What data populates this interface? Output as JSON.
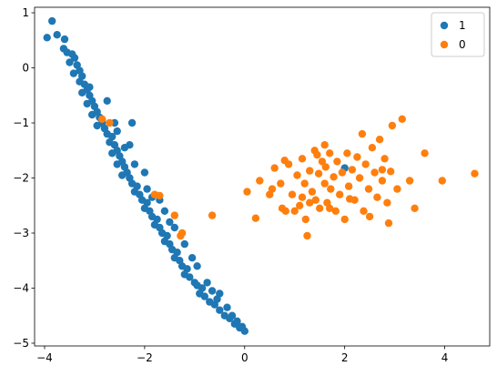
{
  "chart_data": {
    "type": "scatter",
    "title": "",
    "xlabel": "",
    "ylabel": "",
    "xlim": [
      -4.2,
      4.9
    ],
    "ylim": [
      -5.05,
      1.1
    ],
    "xticks": [
      -4,
      -2,
      0,
      2,
      4
    ],
    "yticks": [
      1,
      0,
      -1,
      -2,
      -3,
      -4,
      -5
    ],
    "xtick_labels": [
      "−4",
      "−2",
      "0",
      "2",
      "4"
    ],
    "ytick_labels": [
      "1",
      "0",
      "−1",
      "−2",
      "−3",
      "−4",
      "−5"
    ],
    "grid": false,
    "legend_position": "top-right",
    "series": [
      {
        "name": "1",
        "color": "#1f77b4",
        "points": [
          [
            -3.85,
            0.85
          ],
          [
            -3.95,
            0.55
          ],
          [
            -3.75,
            0.6
          ],
          [
            -3.6,
            0.52
          ],
          [
            -3.62,
            0.35
          ],
          [
            -3.55,
            0.28
          ],
          [
            -3.45,
            0.25
          ],
          [
            -3.4,
            0.18
          ],
          [
            -3.5,
            0.1
          ],
          [
            -3.35,
            0.05
          ],
          [
            -3.3,
            -0.05
          ],
          [
            -3.42,
            -0.1
          ],
          [
            -3.25,
            -0.15
          ],
          [
            -3.3,
            -0.25
          ],
          [
            -3.2,
            -0.3
          ],
          [
            -3.15,
            -0.4
          ],
          [
            -3.25,
            -0.45
          ],
          [
            -3.1,
            -0.5
          ],
          [
            -3.05,
            -0.6
          ],
          [
            -3.15,
            -0.65
          ],
          [
            -3.0,
            -0.7
          ],
          [
            -2.95,
            -0.8
          ],
          [
            -3.05,
            -0.85
          ],
          [
            -2.9,
            -0.9
          ],
          [
            -2.85,
            -1.0
          ],
          [
            -2.95,
            -1.05
          ],
          [
            -2.8,
            -1.1
          ],
          [
            -2.75,
            -1.2
          ],
          [
            -2.65,
            -1.25
          ],
          [
            -2.7,
            -1.35
          ],
          [
            -2.6,
            -1.4
          ],
          [
            -2.55,
            -1.5
          ],
          [
            -2.65,
            -1.55
          ],
          [
            -2.5,
            -1.6
          ],
          [
            -2.45,
            -1.7
          ],
          [
            -2.55,
            -1.75
          ],
          [
            -2.4,
            -1.8
          ],
          [
            -2.35,
            -1.9
          ],
          [
            -2.45,
            -1.95
          ],
          [
            -2.3,
            -2.0
          ],
          [
            -2.25,
            -2.1
          ],
          [
            -2.15,
            -2.15
          ],
          [
            -2.2,
            -2.25
          ],
          [
            -2.1,
            -2.3
          ],
          [
            -2.05,
            -2.4
          ],
          [
            -1.95,
            -2.45
          ],
          [
            -2.0,
            -2.55
          ],
          [
            -1.9,
            -2.6
          ],
          [
            -1.85,
            -2.7
          ],
          [
            -1.75,
            -2.75
          ],
          [
            -1.8,
            -2.85
          ],
          [
            -1.7,
            -2.9
          ],
          [
            -1.65,
            -3.0
          ],
          [
            -1.55,
            -3.05
          ],
          [
            -1.6,
            -3.15
          ],
          [
            -1.5,
            -3.2
          ],
          [
            -1.45,
            -3.3
          ],
          [
            -1.35,
            -3.35
          ],
          [
            -1.4,
            -3.45
          ],
          [
            -1.3,
            -3.5
          ],
          [
            -1.25,
            -3.6
          ],
          [
            -1.15,
            -3.65
          ],
          [
            -1.2,
            -3.75
          ],
          [
            -1.1,
            -3.8
          ],
          [
            -1.0,
            -3.9
          ],
          [
            -0.95,
            -3.95
          ],
          [
            -0.85,
            -4.0
          ],
          [
            -0.9,
            -4.1
          ],
          [
            -0.8,
            -4.15
          ],
          [
            -0.7,
            -4.25
          ],
          [
            -0.6,
            -4.3
          ],
          [
            -0.5,
            -4.4
          ],
          [
            -0.4,
            -4.5
          ],
          [
            -0.3,
            -4.55
          ],
          [
            -0.2,
            -4.65
          ],
          [
            -0.1,
            -4.72
          ],
          [
            0.0,
            -4.78
          ],
          [
            -0.05,
            -4.7
          ],
          [
            -0.15,
            -4.6
          ],
          [
            -0.25,
            -4.5
          ],
          [
            -0.35,
            -4.35
          ],
          [
            -0.55,
            -4.2
          ],
          [
            -0.65,
            -4.05
          ],
          [
            -0.75,
            -3.9
          ],
          [
            -0.5,
            -4.1
          ],
          [
            -2.25,
            -1.0
          ],
          [
            -2.6,
            -1.0
          ],
          [
            -2.85,
            -0.95
          ],
          [
            -3.1,
            -0.35
          ],
          [
            -2.3,
            -1.4
          ],
          [
            -2.0,
            -1.9
          ],
          [
            -1.95,
            -2.2
          ],
          [
            -1.7,
            -2.4
          ],
          [
            -1.6,
            -2.6
          ],
          [
            -1.4,
            -2.9
          ],
          [
            -1.2,
            -3.2
          ],
          [
            -1.05,
            -3.45
          ],
          [
            -0.95,
            -3.6
          ],
          [
            -2.75,
            -0.6
          ],
          [
            -2.55,
            -1.15
          ],
          [
            -2.4,
            -1.45
          ],
          [
            -2.2,
            -1.75
          ],
          [
            -1.85,
            -2.35
          ],
          [
            -1.5,
            -2.8
          ],
          [
            2.0,
            -1.82
          ]
        ]
      },
      {
        "name": "0",
        "color": "#ff7f0e",
        "points": [
          [
            -2.7,
            -1.0
          ],
          [
            -2.85,
            -0.93
          ],
          [
            -1.8,
            -2.3
          ],
          [
            -1.7,
            -2.32
          ],
          [
            -1.4,
            -2.68
          ],
          [
            -1.25,
            -3.0
          ],
          [
            -1.28,
            -3.05
          ],
          [
            -0.65,
            -2.68
          ],
          [
            0.05,
            -2.25
          ],
          [
            0.22,
            -2.73
          ],
          [
            0.3,
            -2.05
          ],
          [
            0.5,
            -2.3
          ],
          [
            0.55,
            -2.2
          ],
          [
            0.6,
            -1.82
          ],
          [
            0.72,
            -2.1
          ],
          [
            0.75,
            -2.55
          ],
          [
            0.8,
            -1.68
          ],
          [
            0.82,
            -2.6
          ],
          [
            0.88,
            -1.75
          ],
          [
            0.95,
            -2.3
          ],
          [
            1.05,
            -1.95
          ],
          [
            1.1,
            -2.5
          ],
          [
            1.15,
            -1.65
          ],
          [
            1.2,
            -2.1
          ],
          [
            1.22,
            -2.75
          ],
          [
            1.25,
            -3.05
          ],
          [
            1.3,
            -1.87
          ],
          [
            1.35,
            -2.25
          ],
          [
            1.4,
            -1.5
          ],
          [
            1.42,
            -2.4
          ],
          [
            1.48,
            -1.92
          ],
          [
            1.5,
            -2.55
          ],
          [
            1.55,
            -1.7
          ],
          [
            1.6,
            -2.1
          ],
          [
            1.62,
            -1.8
          ],
          [
            1.65,
            -2.45
          ],
          [
            1.7,
            -1.55
          ],
          [
            1.72,
            -2.2
          ],
          [
            1.78,
            -1.98
          ],
          [
            1.82,
            -2.6
          ],
          [
            1.85,
            -1.7
          ],
          [
            1.9,
            -2.3
          ],
          [
            1.95,
            -1.9
          ],
          [
            2.0,
            -2.75
          ],
          [
            2.05,
            -1.55
          ],
          [
            2.08,
            -2.15
          ],
          [
            2.15,
            -1.85
          ],
          [
            2.2,
            -2.4
          ],
          [
            2.25,
            -1.62
          ],
          [
            2.3,
            -2.0
          ],
          [
            2.35,
            -1.2
          ],
          [
            2.38,
            -2.6
          ],
          [
            2.42,
            -1.75
          ],
          [
            2.48,
            -2.2
          ],
          [
            2.55,
            -1.45
          ],
          [
            2.6,
            -1.9
          ],
          [
            2.65,
            -2.35
          ],
          [
            2.7,
            -1.3
          ],
          [
            2.75,
            -2.05
          ],
          [
            2.8,
            -1.65
          ],
          [
            2.85,
            -2.45
          ],
          [
            2.88,
            -2.82
          ],
          [
            2.92,
            -1.88
          ],
          [
            2.95,
            -1.05
          ],
          [
            3.05,
            -2.2
          ],
          [
            3.15,
            -0.93
          ],
          [
            3.3,
            -2.05
          ],
          [
            3.4,
            -2.55
          ],
          [
            3.6,
            -1.55
          ],
          [
            3.95,
            -2.05
          ],
          [
            4.6,
            -1.92
          ],
          [
            1.0,
            -2.6
          ],
          [
            1.15,
            -2.35
          ],
          [
            1.45,
            -1.58
          ],
          [
            1.7,
            -2.55
          ],
          [
            2.1,
            -2.38
          ],
          [
            2.5,
            -2.7
          ],
          [
            2.75,
            -1.85
          ],
          [
            1.3,
            -2.45
          ],
          [
            1.6,
            -1.4
          ]
        ]
      }
    ]
  }
}
